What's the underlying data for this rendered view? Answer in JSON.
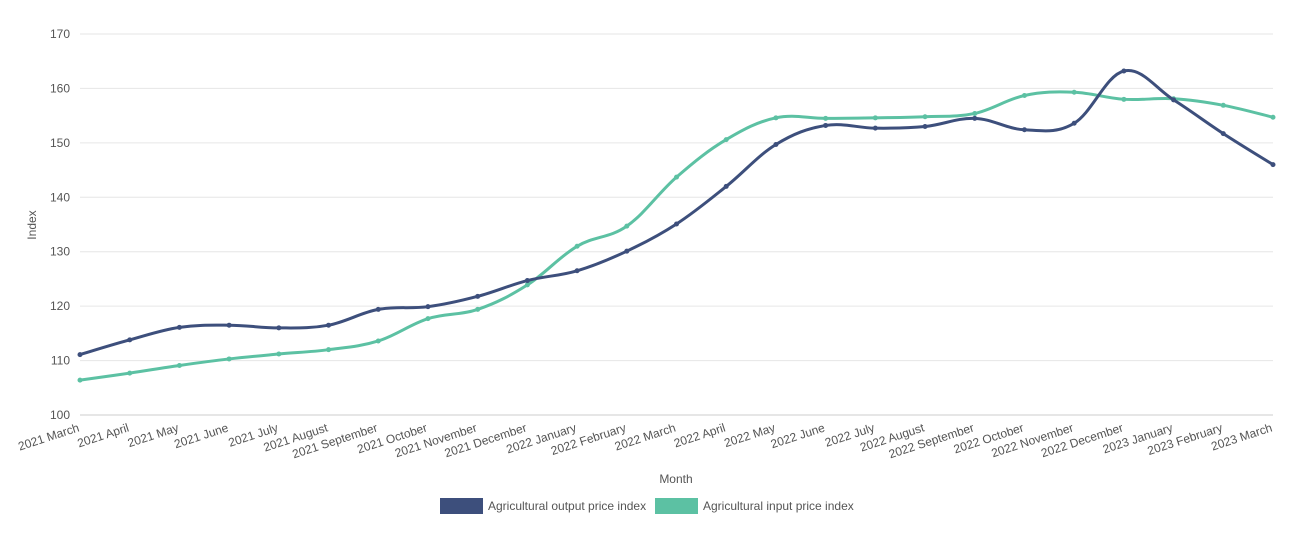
{
  "chart_data": {
    "type": "line",
    "title": "",
    "xlabel": "Month",
    "ylabel": "Index",
    "ylim": [
      100,
      170
    ],
    "yticks": [
      100,
      110,
      120,
      130,
      140,
      150,
      160,
      170
    ],
    "grid": true,
    "legend_position": "bottom",
    "categories": [
      "2021 March",
      "2021 April",
      "2021 May",
      "2021 June",
      "2021 July",
      "2021 August",
      "2021 September",
      "2021 October",
      "2021 November",
      "2021 December",
      "2022 January",
      "2022 February",
      "2022 March",
      "2022 April",
      "2022 May",
      "2022 June",
      "2022 July",
      "2022 August",
      "2022 September",
      "2022 October",
      "2022 November",
      "2022 December",
      "2023 January",
      "2023 February",
      "2023 March"
    ],
    "series": [
      {
        "name": "Agricultural output price index",
        "color": "#3d4f7c",
        "values": [
          111.1,
          113.8,
          116.1,
          116.5,
          116.0,
          116.5,
          119.4,
          119.9,
          121.8,
          124.7,
          126.5,
          130.1,
          135.1,
          142.0,
          149.7,
          153.2,
          152.7,
          153.0,
          154.5,
          152.4,
          153.6,
          163.2,
          157.9,
          151.7,
          146.0
        ]
      },
      {
        "name": "Agricultural input price index",
        "color": "#5cc1a3",
        "values": [
          106.4,
          107.7,
          109.1,
          110.3,
          111.2,
          112.0,
          113.6,
          117.7,
          119.4,
          123.9,
          131.0,
          134.7,
          143.7,
          150.6,
          154.6,
          154.5,
          154.6,
          154.8,
          155.4,
          158.7,
          159.3,
          158.0,
          158.1,
          156.9,
          154.7
        ]
      }
    ]
  }
}
